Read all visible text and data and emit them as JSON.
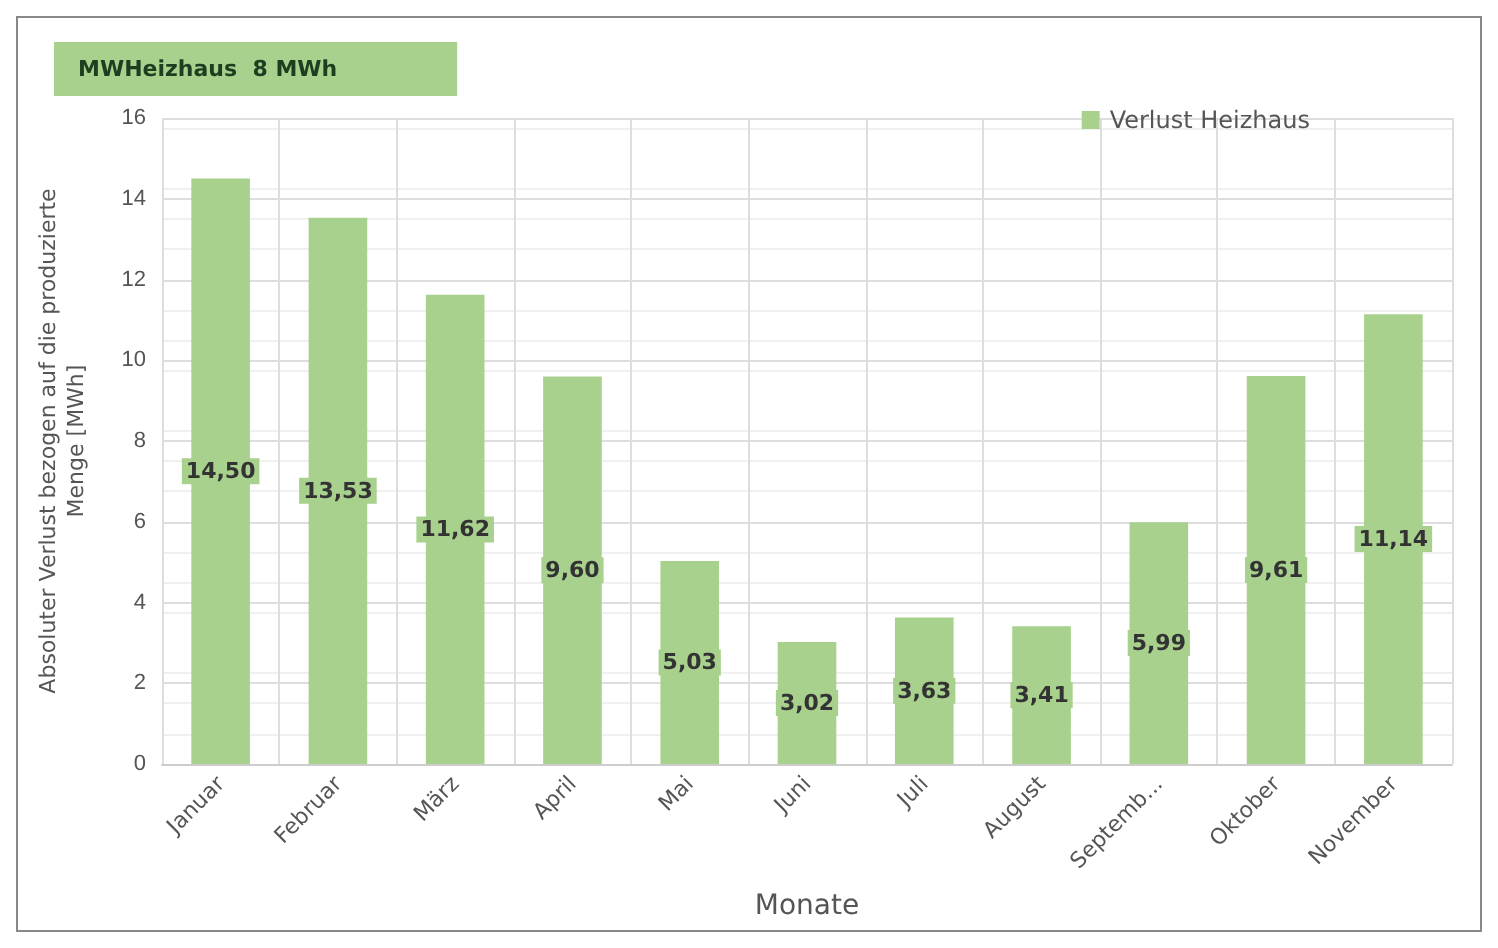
{
  "chart_data": {
    "type": "bar",
    "title": "MWHeizhaus  8 MWh",
    "xlabel": "Monate",
    "ylabel": "Absoluter Verlust bezogen auf die produzierte\nMenge [MWh]",
    "categories": [
      "Januar",
      "Februar",
      "März",
      "April",
      "Mai",
      "Juni",
      "Juli",
      "August",
      "Septemb...",
      "Oktober",
      "November"
    ],
    "series": [
      {
        "name": "Verlust Heizhaus",
        "color": "#a9d18e",
        "values": [
          14.5,
          13.53,
          11.62,
          9.6,
          5.03,
          3.02,
          3.63,
          3.41,
          5.99,
          9.61,
          11.14
        ],
        "value_labels": [
          "14,50",
          "13,53",
          "11,62",
          "9,60",
          "5,03",
          "3,02",
          "3,63",
          "3,41",
          "5,99",
          "9,61",
          "11,14"
        ]
      }
    ],
    "ylim": [
      0,
      16
    ],
    "yticks": [
      0,
      2,
      4,
      6,
      8,
      10,
      12,
      14,
      16
    ],
    "grid": true,
    "legend": "top right"
  }
}
